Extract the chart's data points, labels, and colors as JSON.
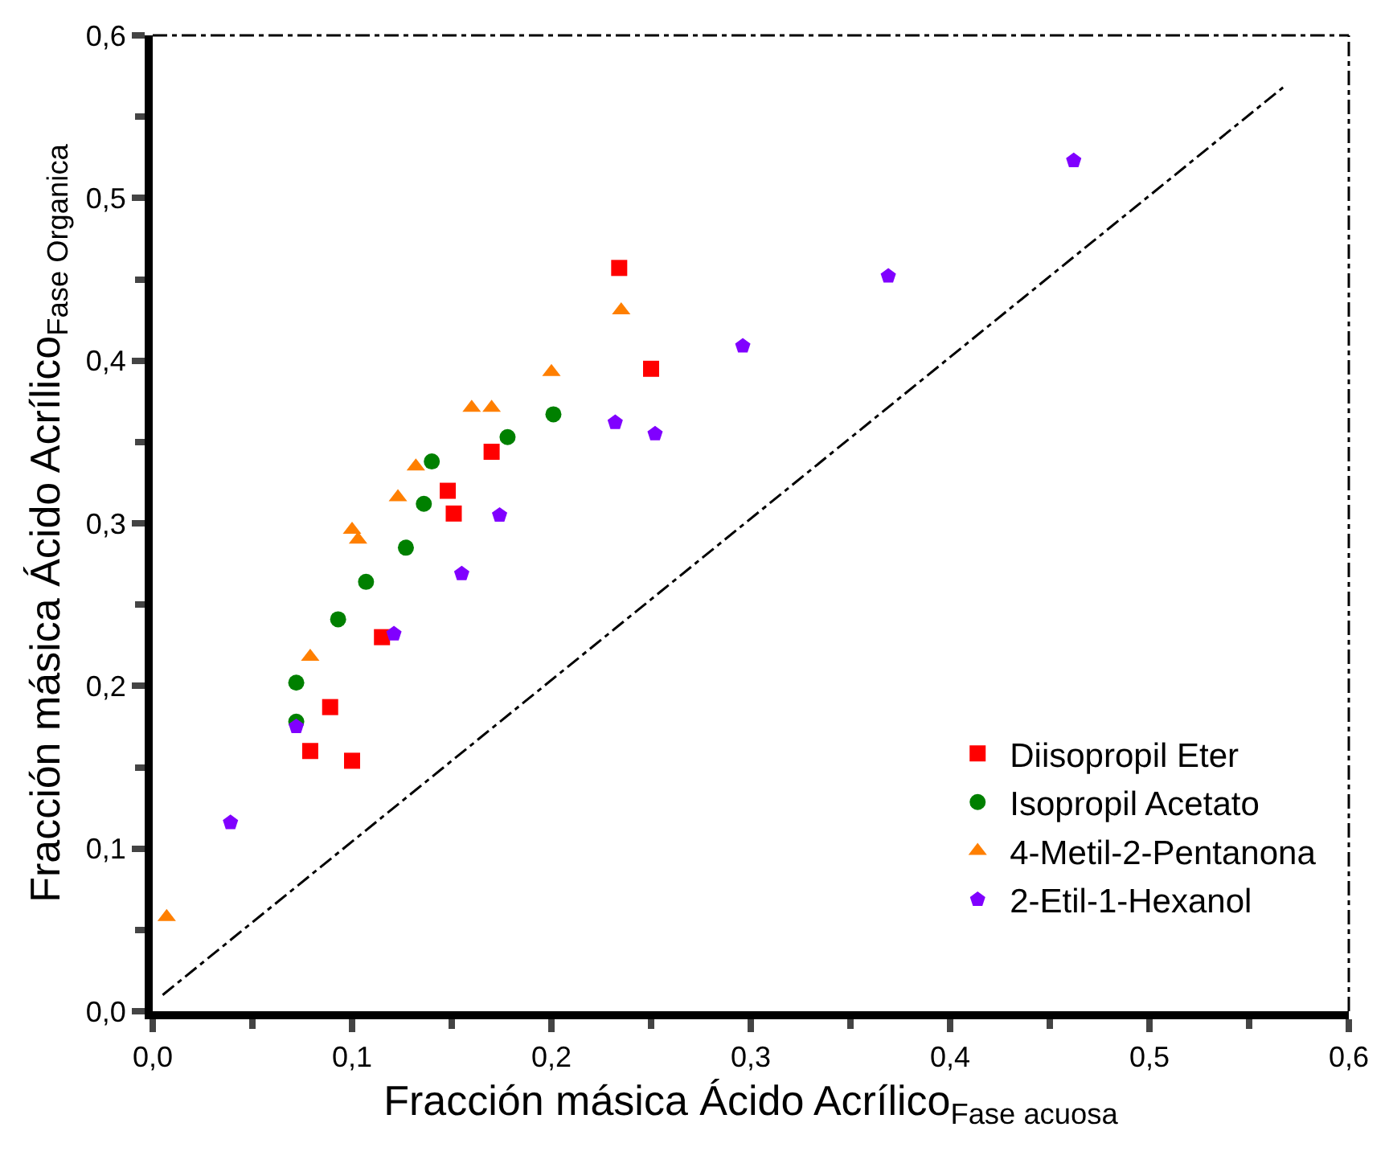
{
  "chart_data": {
    "type": "scatter",
    "xlabel": "Fracción másica Ácido Acrílico$_{Fase acuosa}$",
    "ylabel": "Fracción másica Ácido Acrílico$_{Fase Organica}$",
    "xlim": [
      0,
      0.6
    ],
    "ylim": [
      0,
      0.6
    ],
    "xticks": [
      {
        "value": 0,
        "label": "0,0"
      },
      {
        "value": 0.1,
        "label": "0,1"
      },
      {
        "value": 0.2,
        "label": "0,2"
      },
      {
        "value": 0.3,
        "label": "0,3"
      },
      {
        "value": 0.4,
        "label": "0,4"
      },
      {
        "value": 0.5,
        "label": "0,5"
      },
      {
        "value": 0.6,
        "label": "0,6"
      }
    ],
    "yticks": [
      {
        "value": 0,
        "label": "0,0"
      },
      {
        "value": 0.1,
        "label": "0,1"
      },
      {
        "value": 0.2,
        "label": "0,2"
      },
      {
        "value": 0.3,
        "label": "0,3"
      },
      {
        "value": 0.4,
        "label": "0,4"
      },
      {
        "value": 0.5,
        "label": "0,5"
      },
      {
        "value": 0.6,
        "label": "0,6"
      }
    ],
    "grid": false,
    "legend": "bottom right",
    "series": [
      {
        "name": "Diisopropil Eter",
        "color": "#ff0000",
        "marker": "square",
        "x": [
          0.079,
          0.089,
          0.1,
          0.115,
          0.148,
          0.151,
          0.17,
          0.234,
          0.25
        ],
        "values": [
          0.16,
          0.187,
          0.154,
          0.23,
          0.32,
          0.306,
          0.344,
          0.457,
          0.395
        ]
      },
      {
        "name": "Isopropil Acetato",
        "color": "#008000",
        "marker": "circle",
        "x": [
          0.072,
          0.072,
          0.093,
          0.107,
          0.127,
          0.136,
          0.14,
          0.178,
          0.201
        ],
        "values": [
          0.202,
          0.178,
          0.241,
          0.264,
          0.285,
          0.312,
          0.338,
          0.353,
          0.367
        ]
      },
      {
        "name": "4-Metil-2-Pentanona",
        "color": "#ff7f00",
        "marker": "triangle",
        "x": [
          0.007,
          0.079,
          0.1,
          0.103,
          0.123,
          0.132,
          0.16,
          0.17,
          0.2,
          0.235
        ],
        "values": [
          0.058,
          0.218,
          0.296,
          0.29,
          0.316,
          0.335,
          0.371,
          0.371,
          0.393,
          0.431
        ]
      },
      {
        "name": "2-Etil-1-Hexanol",
        "color": "#8000ff",
        "x": [
          0.039,
          0.072,
          0.121,
          0.155,
          0.174,
          0.232,
          0.252,
          0.296,
          0.369,
          0.462
        ],
        "values": [
          0.116,
          0.175,
          0.232,
          0.269,
          0.305,
          0.362,
          0.355,
          0.409,
          0.452,
          0.523
        ]
      },
      {
        "type": "line",
        "color": "#000000",
        "line_style": "dashed",
        "marker": "none",
        "x": [
          0.005,
          0.567
        ],
        "values": [
          0.01,
          0.568
        ]
      }
    ]
  }
}
